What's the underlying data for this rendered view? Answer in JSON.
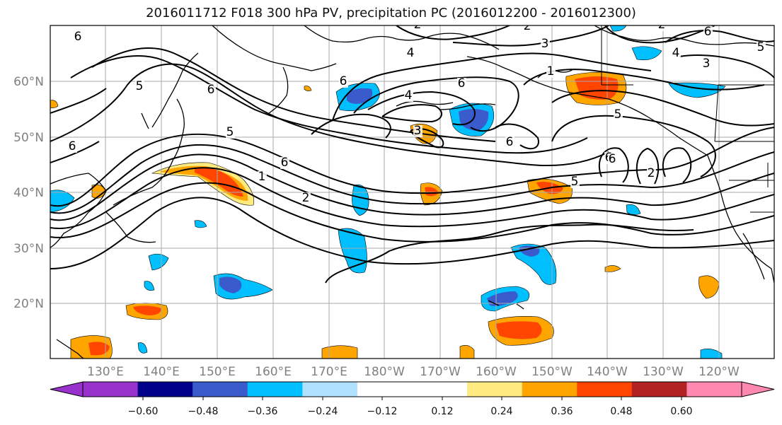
{
  "title": "2016011712 F018 300 hPa PV, precipitation PC (2016012200 - 2016012300)",
  "lat_labels": [
    "60°N",
    "50°N",
    "40°N",
    "30°N",
    "20°N"
  ],
  "lon_labels": [
    "130°E",
    "140°E",
    "150°E",
    "160°E",
    "170°E",
    "180°W",
    "170°W",
    "160°W",
    "150°W",
    "140°W",
    "130°W",
    "120°W"
  ],
  "pv_contour_labels": [
    "6",
    "2",
    "3",
    "4",
    "5",
    "6",
    "6",
    "4",
    "2",
    "6",
    "3",
    "2",
    "6",
    "5",
    "6",
    "4",
    "6",
    "1",
    "5",
    "6",
    "5",
    "3",
    "1",
    "6",
    "2",
    "2",
    "5",
    "6"
  ],
  "colorbar": {
    "colors": [
      "#9932CC",
      "#00008B",
      "#3A5BCC",
      "#00BFFF",
      "#B0E0FF",
      "#FFFFFF",
      "#FFFFFF",
      "#FFEB80",
      "#FFA500",
      "#FF4500",
      "#B22222",
      "#FF88B0"
    ],
    "tick_labels": [
      "−0.60",
      "−0.48",
      "−0.36",
      "−0.24",
      "−0.12",
      "0.12",
      "0.24",
      "0.36",
      "0.48",
      "0.60"
    ]
  },
  "colors": {
    "neg_light": "#00BFFF",
    "neg_mid": "#3A5BCC",
    "pos_light": "#FFEB80",
    "pos_mid": "#FFA500",
    "pos_strong": "#FF4500",
    "grid": "#a9a9a9"
  }
}
